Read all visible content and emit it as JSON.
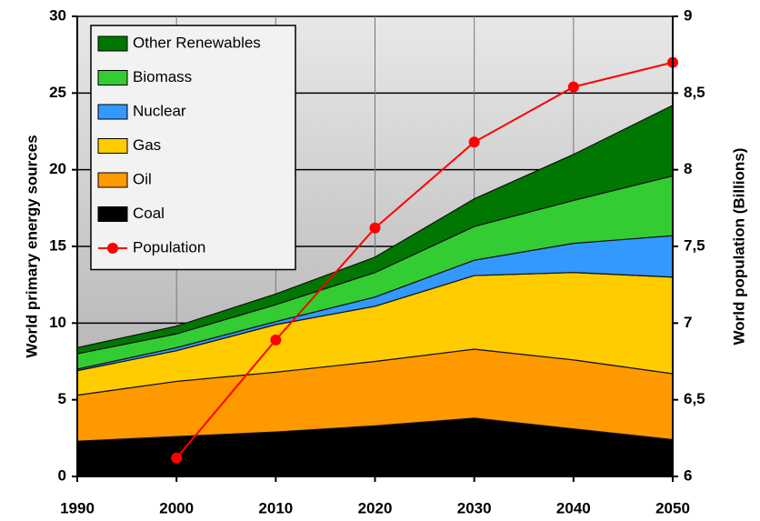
{
  "chart_data": {
    "type": "stacked_area",
    "x": [
      1990,
      2000,
      2010,
      2020,
      2030,
      2040,
      2050
    ],
    "xlim": [
      1990,
      2050
    ],
    "xticks": [
      1990,
      2000,
      2010,
      2020,
      2030,
      2040,
      2050
    ],
    "ylabel": "World primary energy sources",
    "y2label": "World population (Billions)",
    "ylim": [
      0,
      30
    ],
    "yticks": [
      0,
      5,
      10,
      15,
      20,
      25,
      30
    ],
    "y2lim": [
      6,
      9
    ],
    "y2ticks": [
      6,
      {
        "value": 6.5,
        "label": "6,5"
      },
      7,
      {
        "value": 7.5,
        "label": "7,5"
      },
      8,
      {
        "value": 8.5,
        "label": "8,5"
      },
      9
    ],
    "grid": true,
    "legend": "upper left",
    "series": [
      {
        "name": "Coal",
        "color": "#000000",
        "values": [
          2.3,
          2.6,
          2.9,
          3.3,
          3.8,
          3.1,
          2.4
        ]
      },
      {
        "name": "Oil",
        "color": "#ff9900",
        "values": [
          3.0,
          3.6,
          3.9,
          4.2,
          4.5,
          4.5,
          4.3
        ]
      },
      {
        "name": "Gas",
        "color": "#ffcc00",
        "values": [
          1.6,
          2.0,
          3.1,
          3.6,
          4.8,
          5.7,
          6.3
        ]
      },
      {
        "name": "Nuclear",
        "color": "#3399ff",
        "values": [
          0.1,
          0.2,
          0.2,
          0.6,
          1.0,
          1.9,
          2.7
        ]
      },
      {
        "name": "Biomass",
        "color": "#33cc33",
        "values": [
          1.0,
          0.9,
          1.1,
          1.6,
          2.2,
          2.8,
          3.9
        ]
      },
      {
        "name": "Other Renewables",
        "color": "#007700",
        "values": [
          0.4,
          0.5,
          0.7,
          1.0,
          1.8,
          3.0,
          4.6
        ]
      },
      {
        "name": "Population",
        "type": "line",
        "axis": "y2",
        "color": "#ff0000",
        "values": [
          null,
          6.12,
          6.89,
          7.62,
          8.18,
          8.54,
          8.7
        ]
      }
    ]
  }
}
